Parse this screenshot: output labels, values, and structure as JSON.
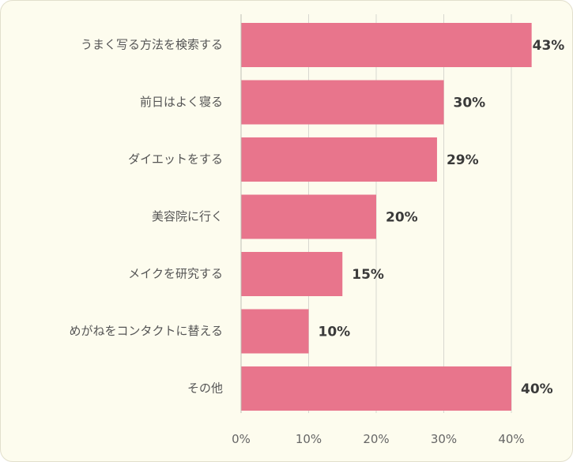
{
  "chart_data": {
    "type": "bar",
    "orientation": "horizontal",
    "categories": [
      "うまく写る方法を検索する",
      "前日はよく寝る",
      "ダイエットをする",
      "美容院に行く",
      "メイクを研究する",
      "めがねをコンタクトに替える",
      "その他"
    ],
    "values": [
      43,
      30,
      29,
      20,
      15,
      10,
      40
    ],
    "value_labels": [
      "43%",
      "30%",
      "29%",
      "20%",
      "15%",
      "10%",
      "40%"
    ],
    "ticks": [
      0,
      10,
      20,
      30,
      40
    ],
    "tick_labels": [
      "0%",
      "10%",
      "20%",
      "30%",
      "40%"
    ],
    "xlim": [
      0,
      50
    ],
    "grid": true,
    "bar_color": "#e8758c",
    "background_color": "#fdfcee",
    "title": "",
    "xlabel": "",
    "ylabel": ""
  }
}
